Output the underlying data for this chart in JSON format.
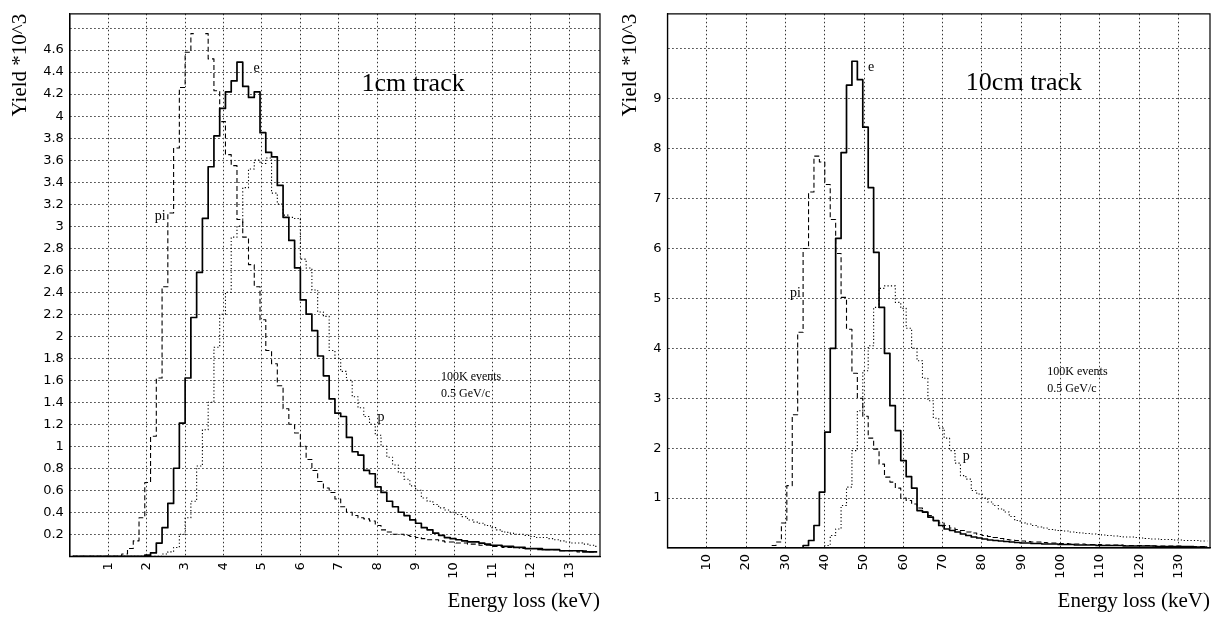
{
  "chart_data": [
    {
      "type": "step",
      "xlabel": "Energy loss (keV)",
      "ylabel": "Yield *10^3",
      "annotations": [
        "1cm track",
        "100K events",
        "0.5 GeV/c"
      ],
      "grid": true,
      "xlim": [
        0,
        13.8
      ],
      "xticks": [
        1,
        2,
        3,
        4,
        5,
        6,
        7,
        8,
        9,
        10,
        11,
        12,
        13
      ],
      "ylim": [
        0,
        4.93
      ],
      "yticks": [
        0.2,
        0.4,
        0.6,
        0.8,
        1,
        1.2,
        1.4,
        1.6,
        1.8,
        2,
        2.2,
        2.4,
        2.6,
        2.8,
        3,
        3.2,
        3.4,
        3.6,
        3.8,
        4,
        4.2,
        4.4,
        4.6,
        {
          "value": 4.8,
          "label": null
        }
      ],
      "x": [
        0.075,
        0.225,
        0.375,
        0.525,
        0.675,
        0.825,
        0.975,
        1.125,
        1.275,
        1.425,
        1.575,
        1.725,
        1.875,
        2.025,
        2.175,
        2.325,
        2.475,
        2.625,
        2.775,
        2.925,
        3.075,
        3.225,
        3.375,
        3.525,
        3.675,
        3.825,
        3.975,
        4.125,
        4.275,
        4.425,
        4.575,
        4.725,
        4.875,
        5.025,
        5.175,
        5.325,
        5.475,
        5.625,
        5.775,
        5.925,
        6.075,
        6.225,
        6.375,
        6.525,
        6.675,
        6.825,
        6.975,
        7.125,
        7.275,
        7.425,
        7.575,
        7.725,
        7.875,
        8.025,
        8.175,
        8.325,
        8.475,
        8.625,
        8.775,
        8.925,
        9.075,
        9.225,
        9.375,
        9.525,
        9.675,
        9.825,
        9.975,
        10.125,
        10.275,
        10.425,
        10.575,
        10.725,
        10.875,
        11.025,
        11.175,
        11.325,
        11.475,
        11.625,
        11.775,
        11.925,
        12.075,
        12.225,
        12.375,
        12.525,
        12.675,
        12.825,
        12.975,
        13.125,
        13.275,
        13.425,
        13.575,
        13.725
      ],
      "series": [
        {
          "name": "pi",
          "color": "#000000",
          "line_style": "dashed",
          "values": [
            0,
            0,
            0,
            0,
            0,
            0,
            0,
            0,
            0,
            0.02,
            0.07,
            0.14,
            0.35,
            0.67,
            1.09,
            1.62,
            2.45,
            3.12,
            3.71,
            4.26,
            4.58,
            4.75,
            null,
            4.75,
            4.52,
            4.23,
            3.95,
            3.65,
            3.55,
            3.06,
            2.9,
            2.65,
            2.45,
            2.15,
            1.87,
            1.75,
            1.55,
            1.34,
            1.2,
            1.12,
            1.0,
            0.88,
            0.78,
            0.68,
            0.62,
            0.58,
            0.52,
            0.45,
            0.4,
            0.37,
            0.35,
            0.34,
            0.32,
            0.28,
            0.24,
            0.22,
            0.2,
            0.2,
            0.19,
            0.18,
            0.17,
            0.16,
            0.15,
            0.15,
            0.14,
            0.13,
            0.13,
            0.12,
            0.12,
            0.11,
            0.11,
            0.1,
            0.1,
            0.09,
            0.09,
            0.08,
            0.08,
            0.08,
            0.07,
            0.07,
            0.07,
            0.06,
            0.06,
            0.06,
            0.06,
            0.05,
            0.05,
            0.05,
            0.04,
            0.05,
            0.04,
            0.04
          ]
        },
        {
          "name": "e",
          "color": "#000000",
          "line_style": "solid",
          "values": [
            0,
            0,
            0,
            0,
            0,
            0,
            0,
            0,
            0,
            0,
            0,
            0,
            0,
            0.01,
            0.03,
            0.12,
            0.26,
            0.48,
            0.8,
            1.21,
            1.62,
            2.17,
            2.58,
            3.07,
            3.54,
            3.82,
            4.07,
            4.22,
            4.32,
            4.49,
            4.27,
            4.17,
            4.22,
            3.85,
            3.67,
            3.63,
            3.37,
            3.08,
            2.87,
            2.62,
            2.33,
            2.2,
            2.05,
            1.82,
            1.64,
            1.43,
            1.3,
            1.27,
            1.08,
            0.95,
            0.92,
            0.78,
            0.75,
            0.63,
            0.58,
            0.5,
            0.45,
            0.4,
            0.37,
            0.33,
            0.3,
            0.26,
            0.24,
            0.21,
            0.19,
            0.17,
            0.16,
            0.15,
            0.14,
            0.13,
            0.13,
            0.12,
            0.11,
            0.1,
            0.1,
            0.09,
            0.09,
            0.08,
            0.08,
            0.07,
            0.07,
            0.07,
            0.06,
            0.06,
            0.06,
            0.05,
            0.05,
            0.05,
            0.05,
            0.04,
            0.04,
            0.04
          ]
        },
        {
          "name": "p",
          "color": "#000000",
          "line_style": "dotted",
          "values": [
            0,
            0,
            0,
            0,
            0,
            0,
            0,
            0,
            0,
            0,
            0,
            0,
            0,
            0,
            0,
            0,
            0.02,
            0.04,
            0.08,
            0.2,
            0.35,
            0.5,
            0.82,
            1.15,
            1.4,
            1.9,
            2.2,
            2.4,
            2.9,
            3.0,
            3.35,
            3.52,
            3.6,
            3.57,
            3.62,
            3.3,
            3.2,
            3.1,
            3.08,
            3.07,
            2.7,
            2.62,
            2.42,
            2.22,
            2.18,
            1.87,
            1.8,
            1.68,
            1.6,
            1.45,
            1.35,
            1.27,
            1.2,
            1.1,
            1.0,
            0.9,
            0.83,
            0.76,
            0.7,
            0.64,
            0.6,
            0.53,
            0.5,
            0.47,
            0.44,
            0.42,
            0.4,
            0.38,
            0.36,
            0.33,
            0.31,
            0.3,
            0.28,
            0.26,
            0.24,
            0.22,
            0.21,
            0.2,
            0.2,
            0.19,
            0.18,
            0.17,
            0.17,
            0.16,
            0.15,
            0.14,
            0.13,
            0.12,
            0.12,
            0.11,
            0.1,
            0.09
          ]
        }
      ]
    },
    {
      "type": "step",
      "xlabel": "Energy loss (keV)",
      "ylabel": "Yield *10^3",
      "annotations": [
        "10cm track",
        "100K events",
        "0.5 GeV/c"
      ],
      "grid": true,
      "xlim": [
        0,
        138
      ],
      "xticks": [
        10,
        20,
        30,
        40,
        50,
        60,
        70,
        80,
        90,
        100,
        110,
        120,
        130
      ],
      "ylim": [
        0,
        10.7
      ],
      "yticks": [
        1,
        2,
        3,
        4,
        5,
        6,
        7,
        8,
        9,
        {
          "value": 10,
          "label": null
        }
      ],
      "x": [
        0.69,
        2.07,
        3.45,
        4.83,
        6.21,
        7.59,
        8.97,
        10.35,
        11.73,
        13.11,
        14.49,
        15.87,
        17.25,
        18.63,
        20.01,
        21.39,
        22.77,
        24.15,
        25.53,
        26.91,
        28.29,
        29.67,
        31.05,
        32.43,
        33.81,
        35.19,
        36.57,
        37.95,
        39.33,
        40.71,
        42.09,
        43.47,
        44.85,
        46.23,
        47.61,
        48.99,
        50.37,
        51.75,
        53.13,
        54.51,
        55.89,
        57.27,
        58.65,
        60.03,
        61.41,
        62.79,
        64.17,
        65.55,
        66.93,
        68.31,
        69.69,
        71.07,
        72.45,
        73.83,
        75.21,
        76.59,
        77.97,
        79.35,
        80.73,
        82.11,
        83.49,
        84.87,
        86.25,
        87.63,
        89.01,
        90.39,
        91.77,
        93.15,
        94.53,
        95.91,
        97.29,
        98.67,
        100.05,
        101.43,
        102.81,
        104.19,
        105.57,
        106.95,
        108.33,
        109.71,
        111.09,
        112.47,
        113.85,
        115.23,
        116.61,
        117.99,
        119.37,
        120.75,
        122.13,
        123.51,
        124.89,
        126.27,
        127.65,
        129.03,
        130.41,
        131.79,
        133.17,
        134.55,
        135.93,
        137.31
      ],
      "series": [
        {
          "name": "pi",
          "color": "#000000",
          "line_style": "dashed",
          "values": [
            0,
            0,
            0,
            0,
            0,
            0,
            0,
            0,
            0,
            0,
            0,
            0,
            0,
            0,
            0,
            0,
            0,
            0,
            0,
            0.05,
            0.12,
            0.5,
            1.25,
            2.67,
            4.32,
            6.0,
            7.13,
            7.85,
            7.73,
            7.28,
            6.58,
            5.9,
            5.02,
            4.38,
            3.5,
            3.0,
            2.64,
            2.2,
            1.98,
            1.68,
            1.42,
            1.32,
            1.2,
            1.0,
            0.95,
            0.88,
            0.8,
            0.72,
            0.65,
            0.55,
            0.5,
            0.45,
            0.4,
            0.37,
            0.35,
            0.32,
            0.3,
            0.27,
            0.25,
            0.23,
            0.21,
            0.19,
            0.17,
            0.16,
            0.15,
            0.14,
            0.13,
            0.12,
            0.12,
            0.11,
            0.1,
            0.1,
            0.09,
            0.09,
            0.08,
            0.08,
            0.08,
            0.07,
            0.07,
            0.07,
            0.06,
            0.06,
            0.06,
            0.06,
            0.05,
            0.05,
            0.05,
            0.05,
            0.05,
            0.04,
            0.04,
            0.04,
            0.04,
            0.04,
            0.04,
            0.03,
            0.03,
            0.03,
            0.03,
            0.03
          ]
        },
        {
          "name": "e",
          "color": "#000000",
          "line_style": "solid",
          "values": [
            0,
            0,
            0,
            0,
            0,
            0,
            0,
            0,
            0,
            0,
            0,
            0,
            0,
            0,
            0,
            0,
            0,
            0,
            0,
            0,
            0,
            0,
            0,
            0,
            0,
            0.05,
            0.15,
            0.45,
            1.12,
            2.32,
            4.0,
            6.2,
            7.92,
            9.27,
            9.75,
            9.38,
            8.43,
            7.22,
            5.92,
            4.82,
            3.9,
            2.85,
            2.35,
            1.75,
            1.43,
            1.2,
            0.75,
            0.72,
            0.62,
            0.55,
            0.45,
            0.38,
            0.35,
            0.32,
            0.28,
            0.25,
            0.22,
            0.2,
            0.18,
            0.16,
            0.15,
            0.14,
            0.13,
            0.12,
            0.11,
            0.1,
            0.1,
            0.09,
            0.09,
            0.08,
            0.08,
            0.08,
            0.07,
            0.07,
            0.07,
            0.06,
            0.06,
            0.06,
            0.06,
            0.05,
            0.05,
            0.05,
            0.05,
            0.05,
            0.04,
            0.04,
            0.04,
            0.04,
            0.04,
            0.04,
            0.03,
            0.03,
            0.03,
            0.03,
            0.03,
            0.03,
            0.03,
            0.02,
            0.02,
            0.02
          ]
        },
        {
          "name": "p",
          "color": "#000000",
          "line_style": "dotted",
          "values": [
            0,
            0,
            0,
            0,
            0,
            0,
            0,
            0,
            0,
            0,
            0,
            0,
            0,
            0,
            0,
            0,
            0,
            0,
            0,
            0,
            0,
            0,
            0,
            0,
            0,
            0,
            0,
            0,
            0,
            0.05,
            0.25,
            0.38,
            0.85,
            1.22,
            1.95,
            2.75,
            3.55,
            4.05,
            4.82,
            5.2,
            5.25,
            5.25,
            4.92,
            4.8,
            4.4,
            4.0,
            3.75,
            3.4,
            2.95,
            2.6,
            2.4,
            2.2,
            1.95,
            1.7,
            1.45,
            1.38,
            1.15,
            1.08,
            1.0,
            0.92,
            0.85,
            0.78,
            0.72,
            0.63,
            0.55,
            0.5,
            0.48,
            0.45,
            0.42,
            0.4,
            0.37,
            0.36,
            0.35,
            0.34,
            0.32,
            0.31,
            0.3,
            0.29,
            0.28,
            0.27,
            0.26,
            0.25,
            0.24,
            0.23,
            0.22,
            0.22,
            0.21,
            0.2,
            0.19,
            0.18,
            0.18,
            0.17,
            0.17,
            0.16,
            0.16,
            0.15,
            0.15,
            0.15,
            0.14,
            0.14
          ]
        }
      ]
    }
  ]
}
